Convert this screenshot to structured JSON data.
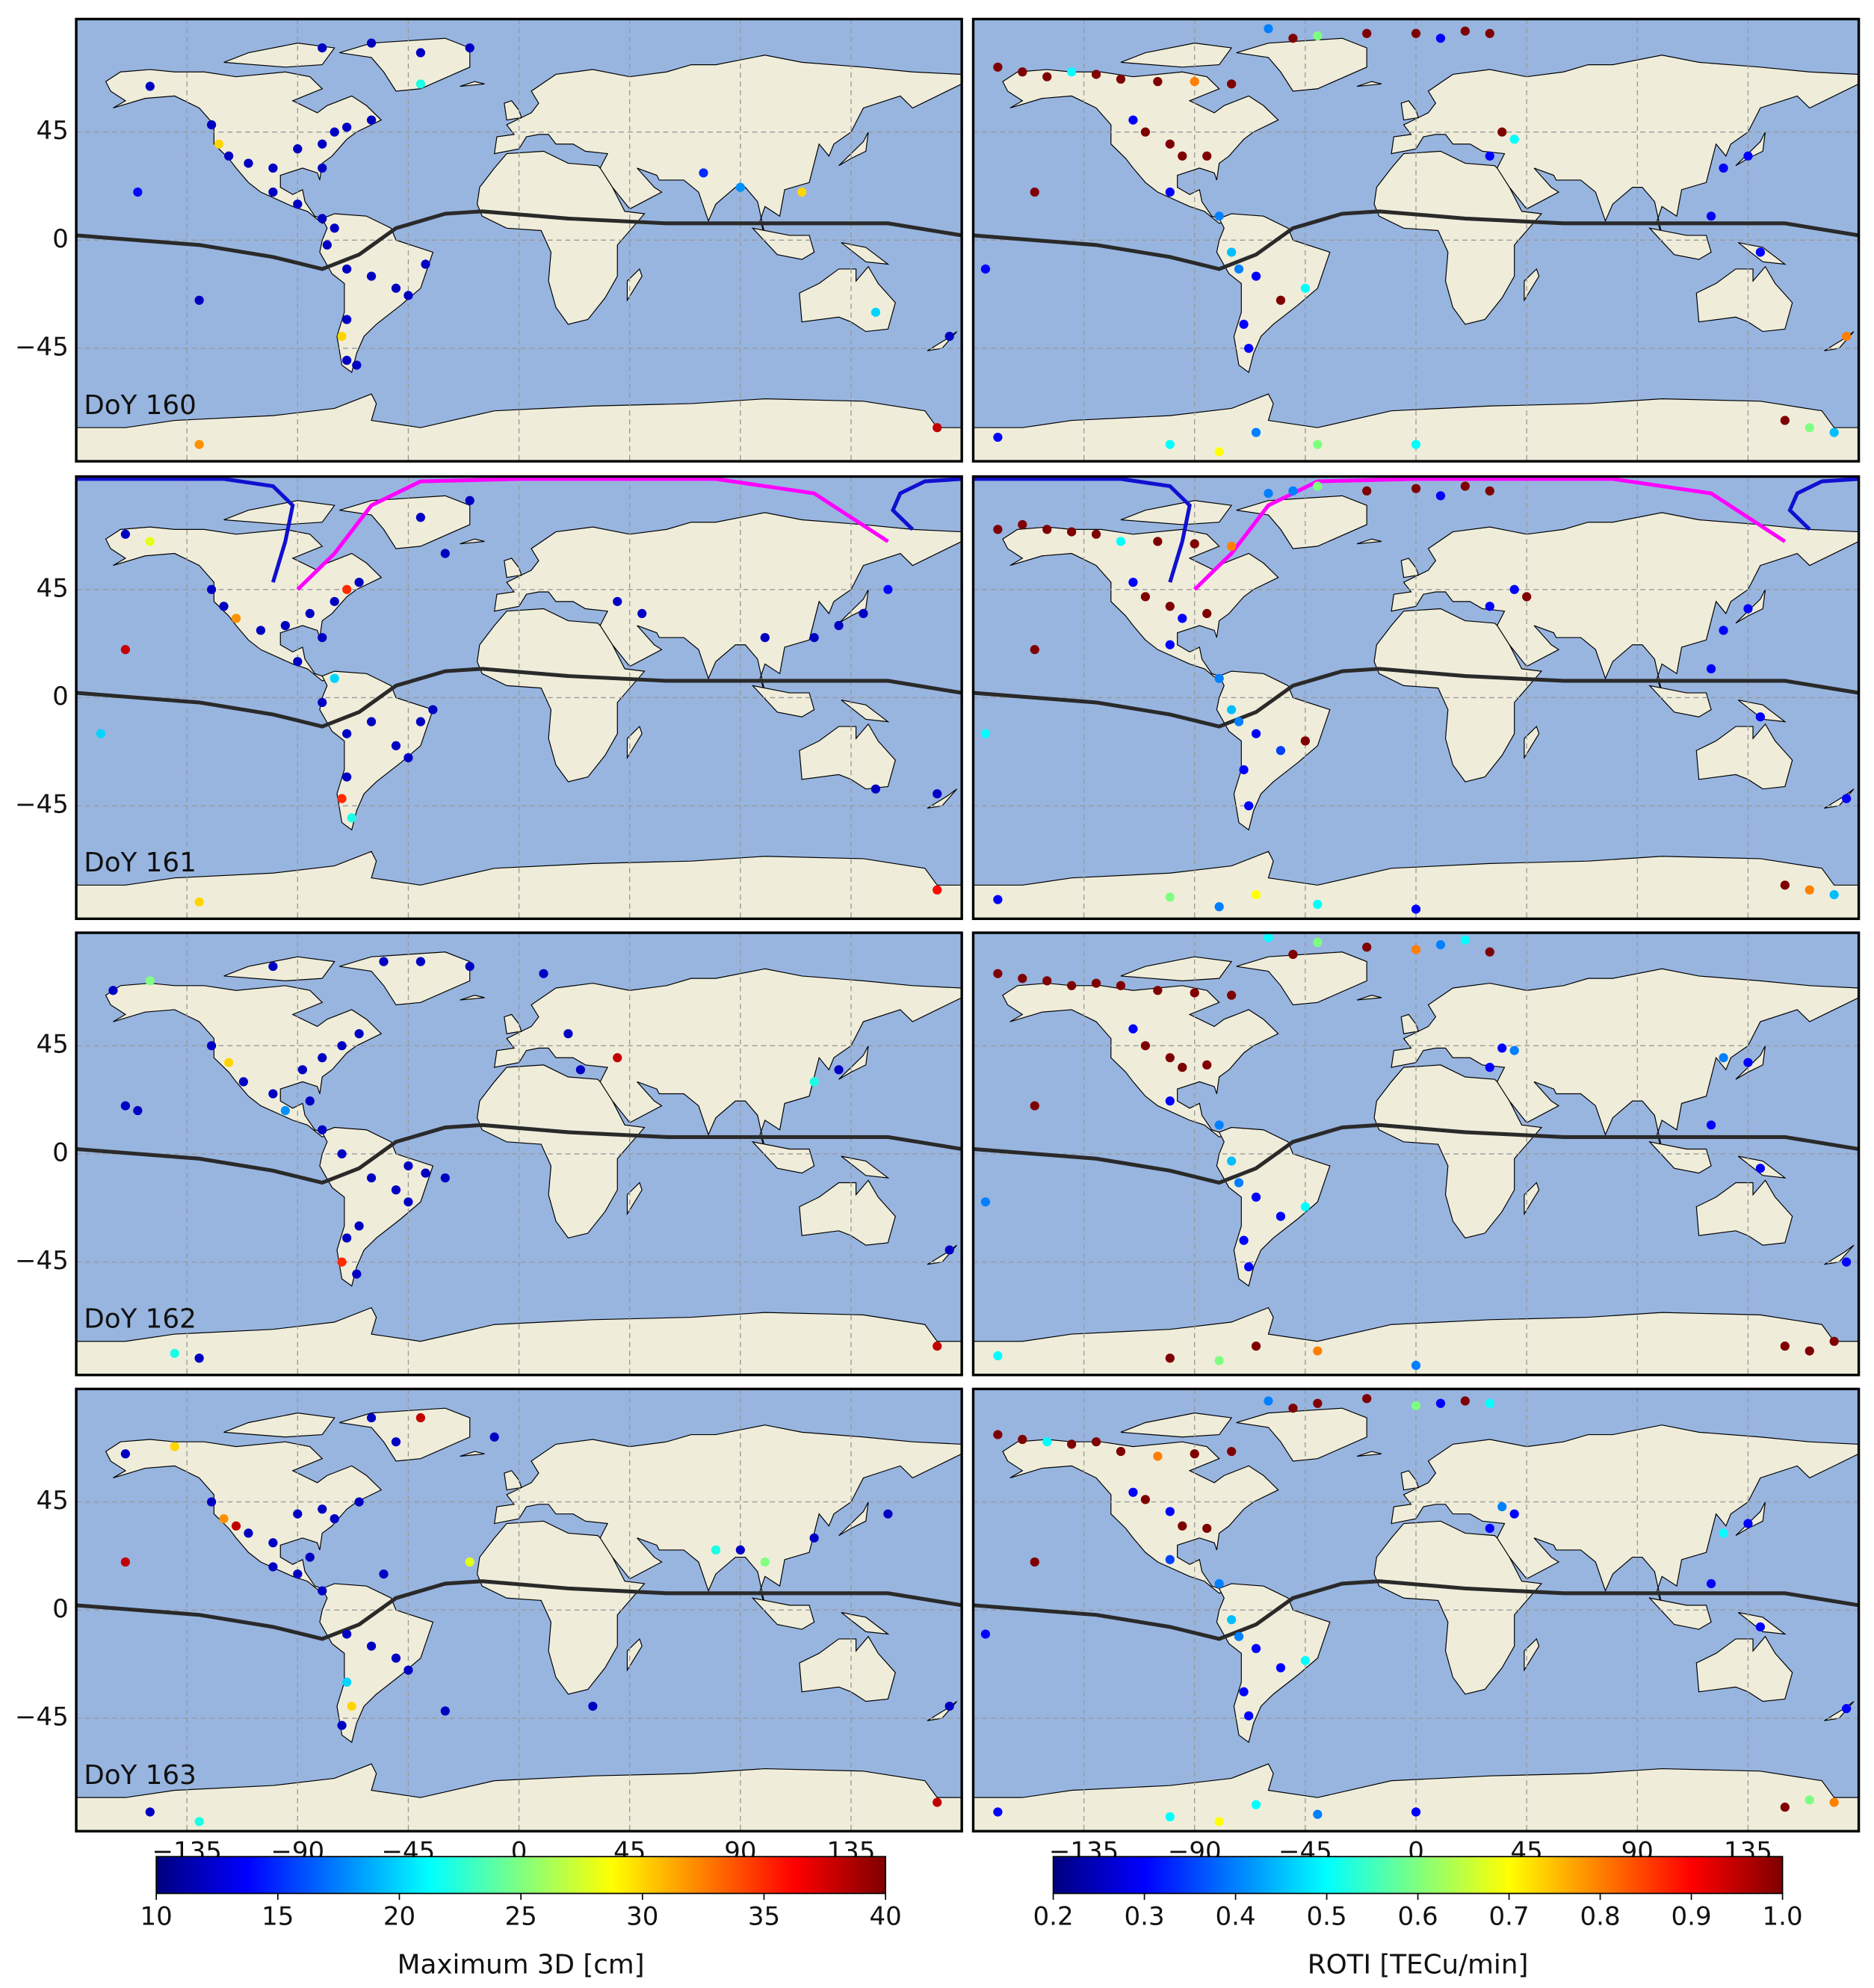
{
  "chart_data": [
    {
      "type": "scatter",
      "title": "DoY 160",
      "cmap": "jet",
      "clim": [
        10,
        40
      ],
      "xlim": [
        -180,
        180
      ],
      "ylim": [
        -92,
        92
      ],
      "xticks": [
        -135,
        -90,
        -45,
        0,
        45,
        90,
        135
      ],
      "yticks": [
        {
          "value": -45,
          "label": "−45"
        },
        0,
        45
      ],
      "grid": true,
      "x": [
        -150,
        -125,
        -122,
        -118,
        -110,
        -100,
        -90,
        -80,
        -75,
        -70,
        -60,
        -80,
        -100,
        -90,
        -80,
        -75,
        -78,
        -70,
        -60,
        -50,
        -45,
        -38,
        -70,
        -72,
        -70,
        -66,
        -155,
        -130,
        -80,
        -60,
        -40,
        -20,
        -40,
        75,
        90,
        115,
        145,
        175,
        -130,
        170
      ],
      "y": [
        64,
        48,
        40,
        35,
        32,
        30,
        38,
        40,
        45,
        47,
        50,
        30,
        20,
        15,
        9,
        5,
        -2,
        -12,
        -15,
        -20,
        -23,
        -10,
        -33,
        -40,
        -50,
        -52,
        20,
        -25,
        80,
        82,
        78,
        80,
        65,
        28,
        22,
        20,
        -30,
        -40,
        -85,
        -78
      ],
      "values": [
        12,
        12,
        30,
        12,
        12,
        12,
        12,
        12,
        12,
        12,
        12,
        12,
        12,
        12,
        12,
        12,
        12,
        12,
        12,
        12,
        12,
        12,
        12,
        30,
        12,
        12,
        14,
        12,
        12,
        12,
        12,
        12,
        22,
        15,
        18,
        30,
        20,
        12,
        32,
        38
      ]
    },
    {
      "type": "scatter",
      "cmap": "jet",
      "clim": [
        0.2,
        1.0
      ],
      "xlim": [
        -180,
        180
      ],
      "ylim": [
        -92,
        92
      ],
      "xticks": [
        -135,
        -90,
        -45,
        0,
        45,
        90,
        135
      ],
      "yticks": [
        -45,
        0,
        45
      ],
      "grid": true,
      "x": [
        -170,
        -160,
        -150,
        -140,
        -130,
        -120,
        -105,
        -90,
        -75,
        -60,
        -40,
        -20,
        0,
        10,
        20,
        30,
        -50,
        -110,
        -100,
        -95,
        -85,
        -115,
        -100,
        -80,
        -75,
        -72,
        -65,
        -55,
        -45,
        -70,
        -68,
        -155,
        -175,
        35,
        40,
        30,
        135,
        125,
        120,
        140,
        175,
        150,
        170,
        160,
        -170,
        -100,
        -40,
        0,
        -65,
        -80
      ],
      "y": [
        72,
        70,
        68,
        70,
        69,
        67,
        66,
        66,
        65,
        88,
        85,
        86,
        86,
        84,
        87,
        86,
        84,
        45,
        40,
        35,
        35,
        50,
        20,
        10,
        -5,
        -12,
        -15,
        -25,
        -20,
        -35,
        -45,
        20,
        -12,
        45,
        42,
        35,
        35,
        30,
        10,
        -5,
        -40,
        -75,
        -80,
        -78,
        -82,
        -85,
        -85,
        -85,
        -80,
        -88
      ],
      "values": [
        1.0,
        1.0,
        1.0,
        0.5,
        1.0,
        1.0,
        1.0,
        0.8,
        1.0,
        0.4,
        0.6,
        1.0,
        1.0,
        0.3,
        1.0,
        1.0,
        1.0,
        1.0,
        1.0,
        1.0,
        1.0,
        0.3,
        0.3,
        0.4,
        0.45,
        0.4,
        0.3,
        1.0,
        0.5,
        0.3,
        0.3,
        1.0,
        0.3,
        1.0,
        0.5,
        0.3,
        0.3,
        0.3,
        0.3,
        0.3,
        0.8,
        1.0,
        0.45,
        0.6,
        0.3,
        0.5,
        0.6,
        0.5,
        0.4,
        0.7
      ]
    },
    {
      "type": "scatter",
      "title": "DoY 161",
      "cmap": "jet",
      "clim": [
        10,
        40
      ],
      "xlim": [
        -180,
        180
      ],
      "ylim": [
        -92,
        92
      ],
      "xticks": [
        -135,
        -90,
        -45,
        0,
        45,
        90,
        135
      ],
      "yticks": [
        {
          "value": -45,
          "label": "−45"
        },
        0,
        45
      ],
      "grid": true,
      "x": [
        -160,
        -150,
        -125,
        -120,
        -115,
        -105,
        -95,
        -85,
        -75,
        -70,
        -65,
        -80,
        -90,
        -75,
        -80,
        -70,
        -60,
        -50,
        -40,
        -45,
        -70,
        -72,
        -68,
        -160,
        -170,
        -35,
        -40,
        -20,
        -30,
        40,
        50,
        100,
        120,
        130,
        140,
        150,
        145,
        170,
        -130,
        170
      ],
      "y": [
        68,
        65,
        45,
        38,
        33,
        28,
        30,
        35,
        40,
        45,
        48,
        25,
        15,
        8,
        -2,
        -15,
        -10,
        -20,
        -10,
        -25,
        -33,
        -42,
        -50,
        20,
        -15,
        -5,
        75,
        82,
        60,
        40,
        35,
        25,
        25,
        30,
        35,
        45,
        -38,
        -40,
        -85,
        -80
      ],
      "values": [
        12,
        28,
        12,
        12,
        32,
        12,
        12,
        12,
        12,
        35,
        12,
        12,
        12,
        20,
        12,
        12,
        12,
        12,
        12,
        12,
        12,
        35,
        22,
        38,
        20,
        12,
        12,
        12,
        12,
        12,
        12,
        12,
        12,
        12,
        12,
        14,
        12,
        12,
        30,
        36
      ]
    },
    {
      "type": "scatter",
      "cmap": "jet",
      "clim": [
        0.2,
        1.0
      ],
      "xlim": [
        -180,
        180
      ],
      "ylim": [
        -92,
        92
      ],
      "xticks": [
        -135,
        -90,
        -45,
        0,
        45,
        90,
        135
      ],
      "yticks": [
        -45,
        0,
        45
      ],
      "grid": true,
      "x": [
        -170,
        -160,
        -150,
        -140,
        -130,
        -120,
        -105,
        -90,
        -75,
        -60,
        -40,
        -20,
        0,
        10,
        20,
        30,
        -50,
        -110,
        -100,
        -95,
        -85,
        -115,
        -100,
        -80,
        -75,
        -72,
        -65,
        -55,
        -45,
        -70,
        -68,
        -155,
        -175,
        45,
        40,
        30,
        135,
        125,
        120,
        140,
        175,
        150,
        170,
        160,
        -170,
        -100,
        -40,
        0,
        -65,
        -80
      ],
      "y": [
        70,
        72,
        70,
        69,
        68,
        65,
        65,
        64,
        63,
        85,
        88,
        86,
        87,
        84,
        88,
        86,
        86,
        42,
        38,
        33,
        35,
        48,
        22,
        8,
        -5,
        -10,
        -15,
        -22,
        -18,
        -30,
        -45,
        20,
        -15,
        42,
        45,
        38,
        37,
        28,
        12,
        -8,
        -42,
        -78,
        -82,
        -80,
        -84,
        -83,
        -86,
        -88,
        -82,
        -87
      ],
      "values": [
        1.0,
        1.0,
        1.0,
        1.0,
        1.0,
        0.5,
        1.0,
        1.0,
        0.8,
        0.4,
        0.6,
        1.0,
        1.0,
        0.3,
        1.0,
        1.0,
        0.4,
        1.0,
        1.0,
        0.3,
        1.0,
        0.3,
        0.3,
        0.4,
        0.45,
        0.4,
        0.3,
        0.35,
        1.0,
        0.3,
        0.3,
        1.0,
        0.5,
        1.0,
        0.3,
        0.3,
        0.3,
        0.3,
        0.3,
        0.3,
        0.3,
        1.0,
        0.45,
        0.8,
        0.3,
        0.6,
        0.5,
        0.3,
        0.7,
        0.4
      ]
    },
    {
      "type": "scatter",
      "title": "DoY 162",
      "cmap": "jet",
      "clim": [
        10,
        40
      ],
      "xlim": [
        -180,
        180
      ],
      "ylim": [
        -92,
        92
      ],
      "xticks": [
        -135,
        -90,
        -45,
        0,
        45,
        90,
        135
      ],
      "yticks": [
        {
          "value": -45,
          "label": "−45"
        },
        0,
        45
      ],
      "grid": true,
      "x": [
        -165,
        -150,
        -125,
        -118,
        -112,
        -100,
        -88,
        -80,
        -72,
        -65,
        -55,
        -85,
        -95,
        -80,
        -72,
        -60,
        -50,
        -45,
        -38,
        -65,
        -70,
        -72,
        -66,
        -160,
        -155,
        -30,
        -40,
        -20,
        -100,
        20,
        40,
        25,
        120,
        130,
        175,
        -130,
        -140,
        170,
        10,
        -45
      ],
      "y": [
        68,
        72,
        45,
        38,
        30,
        25,
        35,
        40,
        45,
        50,
        80,
        22,
        18,
        10,
        0,
        -10,
        -15,
        -20,
        -8,
        -30,
        -35,
        -45,
        -50,
        20,
        18,
        -10,
        80,
        78,
        78,
        50,
        40,
        35,
        30,
        35,
        -40,
        -85,
        -83,
        -80,
        75,
        -5
      ],
      "values": [
        12,
        25,
        12,
        30,
        12,
        12,
        12,
        12,
        12,
        12,
        12,
        12,
        18,
        12,
        12,
        12,
        12,
        12,
        12,
        12,
        12,
        35,
        12,
        12,
        12,
        12,
        12,
        12,
        12,
        12,
        38,
        12,
        22,
        12,
        12,
        12,
        22,
        38,
        12,
        12
      ]
    },
    {
      "type": "scatter",
      "cmap": "jet",
      "clim": [
        0.2,
        1.0
      ],
      "xlim": [
        -180,
        180
      ],
      "ylim": [
        -92,
        92
      ],
      "xticks": [
        -135,
        -90,
        -45,
        0,
        45,
        90,
        135
      ],
      "yticks": [
        -45,
        0,
        45
      ],
      "grid": true,
      "x": [
        -170,
        -160,
        -150,
        -140,
        -130,
        -120,
        -105,
        -90,
        -75,
        -60,
        -40,
        -20,
        0,
        10,
        20,
        30,
        -50,
        -110,
        -100,
        -95,
        -85,
        -115,
        -100,
        -80,
        -75,
        -72,
        -65,
        -55,
        -45,
        -70,
        -68,
        -155,
        -175,
        35,
        40,
        30,
        135,
        125,
        120,
        140,
        175,
        150,
        170,
        160,
        -170,
        -100,
        -40,
        0,
        -65,
        -80
      ],
      "y": [
        75,
        73,
        72,
        70,
        71,
        70,
        68,
        67,
        66,
        90,
        88,
        86,
        85,
        87,
        89,
        84,
        83,
        45,
        40,
        36,
        37,
        52,
        22,
        12,
        -3,
        -12,
        -18,
        -26,
        -22,
        -36,
        -47,
        20,
        -20,
        44,
        43,
        36,
        38,
        40,
        12,
        -6,
        -45,
        -80,
        -78,
        -82,
        -84,
        -85,
        -82,
        -88,
        -80,
        -86
      ],
      "values": [
        1.0,
        1.0,
        1.0,
        1.0,
        1.0,
        1.0,
        1.0,
        1.0,
        1.0,
        0.5,
        0.6,
        1.0,
        0.8,
        0.4,
        0.5,
        1.0,
        1.0,
        1.0,
        1.0,
        1.0,
        1.0,
        0.3,
        0.3,
        0.4,
        0.45,
        0.4,
        0.3,
        0.3,
        0.5,
        0.3,
        0.3,
        1.0,
        0.4,
        0.3,
        0.4,
        0.3,
        0.3,
        0.4,
        0.3,
        0.3,
        0.3,
        1.0,
        1.0,
        1.0,
        0.5,
        1.0,
        0.8,
        0.4,
        1.0,
        0.6
      ]
    },
    {
      "type": "scatter",
      "title": "DoY 163",
      "cmap": "jet",
      "clim": [
        10,
        40
      ],
      "xlim": [
        -180,
        180
      ],
      "ylim": [
        -92,
        92
      ],
      "xticks": [
        {
          "value": -135,
          "label": "−135"
        },
        {
          "value": -90,
          "label": "−90"
        },
        {
          "value": -45,
          "label": "−45"
        },
        0,
        45,
        90,
        135
      ],
      "yticks": [
        {
          "value": -45,
          "label": "−45"
        },
        0,
        45
      ],
      "grid": true,
      "x": [
        -160,
        -140,
        -125,
        -120,
        -115,
        -110,
        -100,
        -90,
        -80,
        -75,
        -65,
        -60,
        -85,
        -90,
        -80,
        -70,
        -60,
        -50,
        -45,
        -70,
        -68,
        -72,
        -160,
        -20,
        -50,
        -40,
        -10,
        80,
        90,
        100,
        120,
        -150,
        -130,
        170,
        150,
        -30,
        30,
        -55,
        -100,
        175
      ],
      "y": [
        65,
        68,
        45,
        38,
        35,
        32,
        28,
        40,
        42,
        38,
        45,
        80,
        22,
        15,
        8,
        -10,
        -15,
        -20,
        -25,
        -30,
        -40,
        -48,
        20,
        20,
        70,
        80,
        72,
        25,
        25,
        20,
        30,
        -84,
        -88,
        -80,
        40,
        -42,
        -40,
        15,
        18,
        -40
      ],
      "values": [
        12,
        30,
        12,
        32,
        38,
        12,
        12,
        12,
        12,
        12,
        12,
        12,
        12,
        12,
        12,
        12,
        12,
        12,
        12,
        20,
        30,
        12,
        38,
        28,
        12,
        38,
        12,
        22,
        12,
        25,
        12,
        12,
        22,
        38,
        12,
        12,
        12,
        12,
        12,
        12
      ]
    },
    {
      "type": "scatter",
      "cmap": "jet",
      "clim": [
        0.2,
        1.0
      ],
      "xlim": [
        -180,
        180
      ],
      "ylim": [
        -92,
        92
      ],
      "xticks": [
        {
          "value": -135,
          "label": "−135"
        },
        {
          "value": -90,
          "label": "−90"
        },
        {
          "value": -45,
          "label": "−45"
        },
        0,
        45,
        90,
        135
      ],
      "yticks": [
        -45,
        0,
        45
      ],
      "grid": true,
      "x": [
        -170,
        -160,
        -150,
        -140,
        -130,
        -120,
        -105,
        -90,
        -75,
        -60,
        -40,
        -20,
        0,
        10,
        20,
        30,
        -50,
        -110,
        -100,
        -95,
        -85,
        -115,
        -100,
        -80,
        -75,
        -72,
        -65,
        -55,
        -45,
        -70,
        -68,
        -155,
        -175,
        35,
        40,
        30,
        135,
        125,
        120,
        140,
        175,
        150,
        170,
        160,
        -170,
        -100,
        -40,
        0,
        -65,
        -80
      ],
      "y": [
        73,
        71,
        70,
        69,
        70,
        66,
        64,
        65,
        66,
        87,
        86,
        88,
        85,
        86,
        87,
        86,
        84,
        46,
        41,
        35,
        34,
        49,
        21,
        11,
        -4,
        -11,
        -16,
        -24,
        -21,
        -34,
        -44,
        20,
        -10,
        43,
        40,
        34,
        36,
        32,
        11,
        -7,
        -41,
        -82,
        -80,
        -79,
        -84,
        -86,
        -85,
        -84,
        -81,
        -88
      ],
      "values": [
        1.0,
        1.0,
        0.5,
        1.0,
        1.0,
        1.0,
        0.8,
        1.0,
        1.0,
        0.4,
        1.0,
        1.0,
        0.6,
        0.3,
        1.0,
        0.5,
        1.0,
        1.0,
        0.3,
        1.0,
        1.0,
        0.3,
        0.35,
        0.4,
        0.45,
        0.4,
        0.3,
        0.3,
        0.5,
        0.3,
        0.3,
        1.0,
        0.3,
        0.4,
        0.3,
        0.3,
        0.3,
        0.5,
        0.3,
        0.3,
        0.3,
        1.0,
        0.8,
        0.6,
        0.3,
        0.5,
        0.4,
        0.3,
        0.5,
        0.7
      ]
    },
    {
      "type": "colorbar",
      "cmap": "jet",
      "label": "Maximum 3D [cm]",
      "clim": [
        10,
        40
      ],
      "ticks": [
        10,
        15,
        20,
        25,
        30,
        35,
        40
      ]
    },
    {
      "type": "colorbar",
      "cmap": "jet",
      "label": "ROTI [TECu/min]",
      "clim": [
        0.2,
        1.0
      ],
      "ticks": [
        0.2,
        0.3,
        0.4,
        0.5,
        0.6,
        0.7,
        0.8,
        0.9,
        {
          "value": 1.0,
          "label": "1.0"
        }
      ]
    }
  ]
}
